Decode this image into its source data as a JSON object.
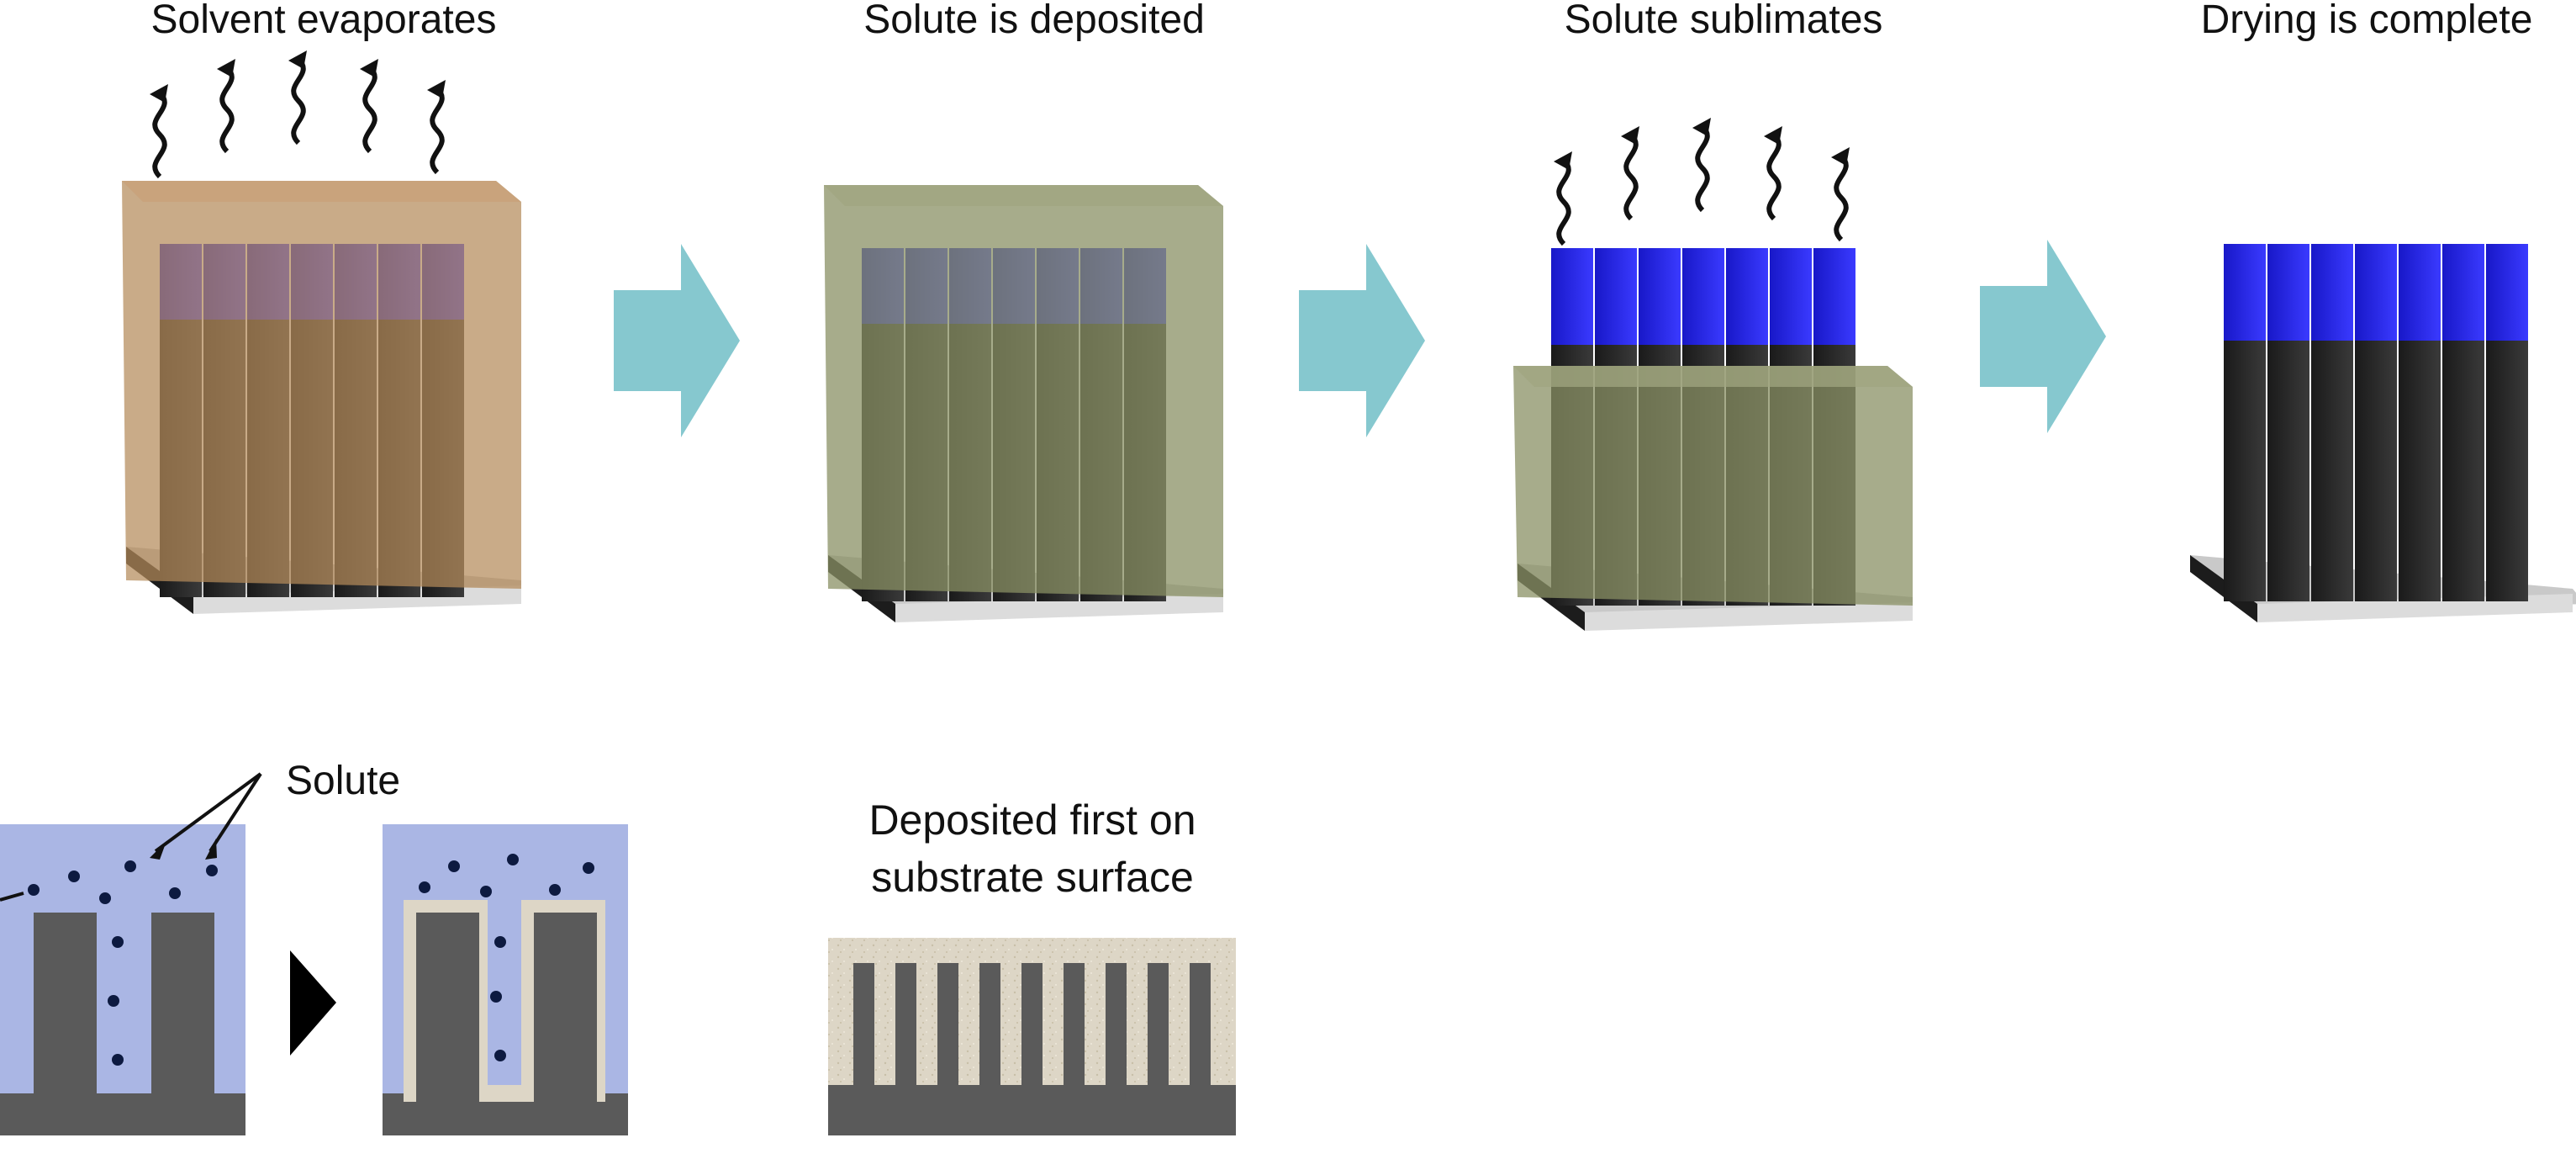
{
  "steps": [
    {
      "label": "Solvent evaporates"
    },
    {
      "label": "Solute is deposited"
    },
    {
      "label": "Solute sublimates"
    },
    {
      "label": "Drying is complete"
    }
  ],
  "detail": {
    "solute_label": "Solute",
    "deposit_label_line1": "Deposited first on",
    "deposit_label_line2": "substrate surface"
  },
  "colors": {
    "arrow": "#86c8cf",
    "pattern_cap": "#2424e0",
    "pattern_body": "#2a2a2a",
    "liquid_solvent": "#b48a5a",
    "liquid_solute": "#8a9064",
    "cross_section_fill": "#aab6e4",
    "cross_section_feature": "#5a5a5a",
    "deposit": "#ddd6c6"
  }
}
